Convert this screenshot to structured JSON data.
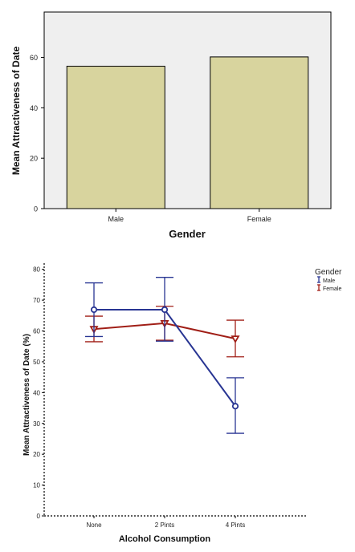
{
  "chart_data": [
    {
      "type": "bar",
      "xlabel": "Gender",
      "ylabel": "Mean Attractiveness of Date",
      "categories": [
        "Male",
        "Female"
      ],
      "values": [
        56.5,
        60.2
      ],
      "ylim": [
        0,
        78
      ],
      "yticks": [
        0,
        20,
        40,
        60
      ],
      "bar_color": "#d8d49e",
      "background": "#efefef",
      "grid": false
    },
    {
      "type": "line",
      "xlabel": "Alcohol Consumption",
      "ylabel": "Mean Attractiveness of Date (%)",
      "categories": [
        "None",
        "2 Pints",
        "4 Pints"
      ],
      "ylim": [
        0,
        82
      ],
      "yticks": [
        0,
        10,
        20,
        30,
        40,
        50,
        60,
        70,
        80
      ],
      "legend": {
        "title": "Gender",
        "position": "top-right",
        "entries": [
          "Male",
          "Female"
        ]
      },
      "series": [
        {
          "name": "Male",
          "color": "#283593",
          "marker": "circle",
          "values": [
            66.9,
            66.9,
            35.6
          ],
          "error_low": [
            58.2,
            56.7,
            26.8
          ],
          "error_high": [
            75.6,
            77.4,
            44.8
          ]
        },
        {
          "name": "Female",
          "color": "#a01e16",
          "marker": "triangle-down",
          "values": [
            60.6,
            62.5,
            57.5
          ],
          "error_low": [
            56.5,
            57.0,
            51.6
          ],
          "error_high": [
            64.8,
            68.0,
            63.5
          ]
        }
      ],
      "grid": false
    }
  ]
}
